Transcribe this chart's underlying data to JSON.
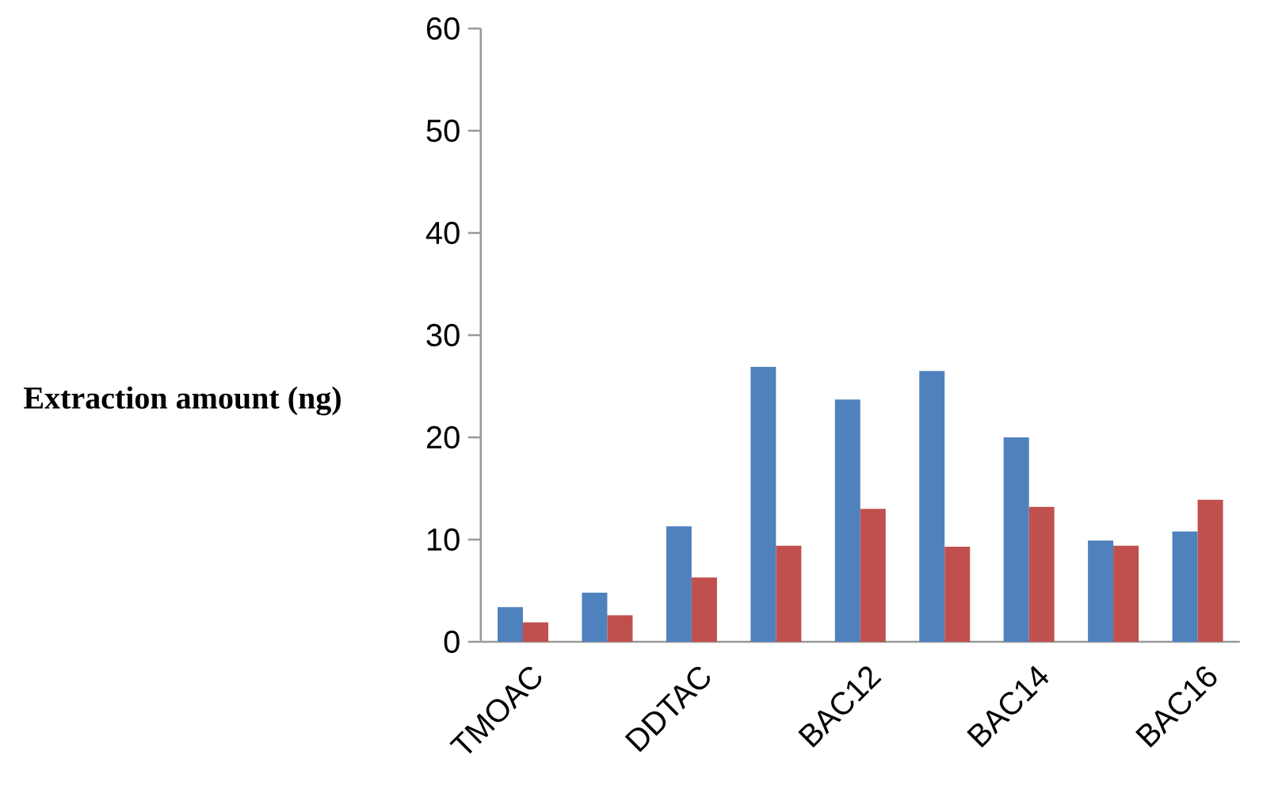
{
  "chart_data": {
    "type": "bar",
    "ylabel": "Extraction amount (ng)",
    "categories": [
      "TMOAC",
      null,
      "DDTAC",
      null,
      "BAC12",
      null,
      "BAC14",
      null,
      "BAC16"
    ],
    "series": [
      {
        "color": "#4f81bd",
        "values": [
          3.4,
          4.8,
          11.3,
          26.9,
          23.7,
          26.5,
          20.0,
          9.9,
          10.8
        ]
      },
      {
        "color": "#c0504d",
        "values": [
          1.9,
          2.6,
          6.3,
          9.4,
          13.0,
          9.3,
          13.2,
          9.4,
          13.9
        ]
      }
    ],
    "ylim": [
      0,
      60
    ],
    "yticks": [
      0,
      10,
      20,
      30,
      40,
      50,
      60
    ]
  }
}
